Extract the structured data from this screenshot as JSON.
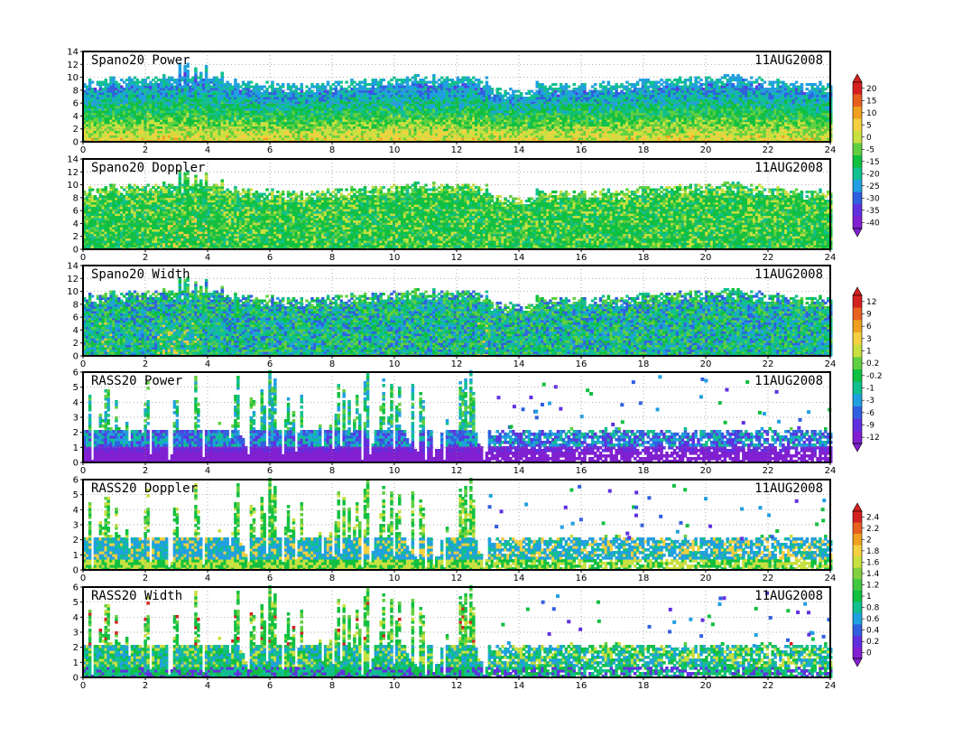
{
  "figure": {
    "date_label": "11AUG2008",
    "x_ticks": [
      "0",
      "2",
      "4",
      "6",
      "8",
      "10",
      "12",
      "14",
      "16",
      "18",
      "20",
      "22",
      "24"
    ]
  },
  "chart_data": [
    {
      "type": "heatmap",
      "title": "Spano20 Power",
      "date": "11AUG2008",
      "xlim": [
        0,
        24
      ],
      "ylim": [
        0,
        14
      ],
      "y_ticks": [
        "0",
        "2",
        "4",
        "6",
        "8",
        "10",
        "12",
        "14"
      ],
      "field": "power",
      "top_height_km": 9.5
    },
    {
      "type": "heatmap",
      "title": "Spano20 Doppler",
      "date": "11AUG2008",
      "xlim": [
        0,
        24
      ],
      "ylim": [
        0,
        14
      ],
      "y_ticks": [
        "0",
        "2",
        "4",
        "6",
        "8",
        "10",
        "12",
        "14"
      ],
      "field": "doppler",
      "top_height_km": 9.5
    },
    {
      "type": "heatmap",
      "title": "Spano20 Width",
      "date": "11AUG2008",
      "xlim": [
        0,
        24
      ],
      "ylim": [
        0,
        14
      ],
      "y_ticks": [
        "0",
        "2",
        "4",
        "6",
        "8",
        "10",
        "12",
        "14"
      ],
      "field": "width",
      "top_height_km": 9.5
    },
    {
      "type": "heatmap",
      "title": "RASS20 Power",
      "date": "11AUG2008",
      "xlim": [
        0,
        24
      ],
      "ylim": [
        0,
        6
      ],
      "y_ticks": [
        "0",
        "1",
        "2",
        "3",
        "4",
        "5",
        "6"
      ],
      "field": "rass_power",
      "top_height_km": 6
    },
    {
      "type": "heatmap",
      "title": "RASS20 Doppler",
      "date": "11AUG2008",
      "xlim": [
        0,
        24
      ],
      "ylim": [
        0,
        6
      ],
      "y_ticks": [
        "0",
        "1",
        "2",
        "3",
        "4",
        "5",
        "6"
      ],
      "field": "rass_doppler",
      "top_height_km": 6
    },
    {
      "type": "heatmap",
      "title": "RASS20 Width",
      "date": "11AUG2008",
      "xlim": [
        0,
        24
      ],
      "ylim": [
        0,
        6
      ],
      "y_ticks": [
        "0",
        "1",
        "2",
        "3",
        "4",
        "5",
        "6"
      ],
      "field": "rass_width",
      "top_height_km": 6
    }
  ],
  "colorbars": [
    {
      "name": "power-colorbar",
      "labels": [
        "20",
        "15",
        "10",
        "5",
        "0",
        "-5",
        "-15",
        "-20",
        "-25",
        "-30",
        "-35",
        "-40"
      ],
      "colors": [
        "#d4201f",
        "#e8601e",
        "#f0a020",
        "#f5d040",
        "#c8e040",
        "#60d040",
        "#10c040",
        "#10c090",
        "#20a0e0",
        "#3060e0",
        "#6030e0",
        "#8020d0"
      ]
    },
    {
      "name": "width-colorbar",
      "labels": [
        "12",
        "9",
        "6",
        "3",
        "1",
        "0.2",
        "-0.2",
        "-1",
        "-3",
        "-6",
        "-9",
        "-12"
      ],
      "colors": [
        "#d4201f",
        "#e8601e",
        "#f0a020",
        "#f5d040",
        "#c8e040",
        "#60d040",
        "#10c040",
        "#10c090",
        "#20a0e0",
        "#3060e0",
        "#6030e0",
        "#8020d0"
      ]
    },
    {
      "name": "rass-colorbar",
      "labels": [
        "2.4",
        "2.2",
        "2",
        "1.8",
        "1.6",
        "1.4",
        "1.2",
        "1",
        "0.8",
        "0.6",
        "0.4",
        "0.2",
        "0"
      ],
      "colors": [
        "#d4201f",
        "#e8601e",
        "#f0a020",
        "#f5d040",
        "#c8e040",
        "#80d040",
        "#40c840",
        "#10c040",
        "#10c090",
        "#20a0e0",
        "#3060e0",
        "#6030e0",
        "#8020d0"
      ]
    }
  ]
}
